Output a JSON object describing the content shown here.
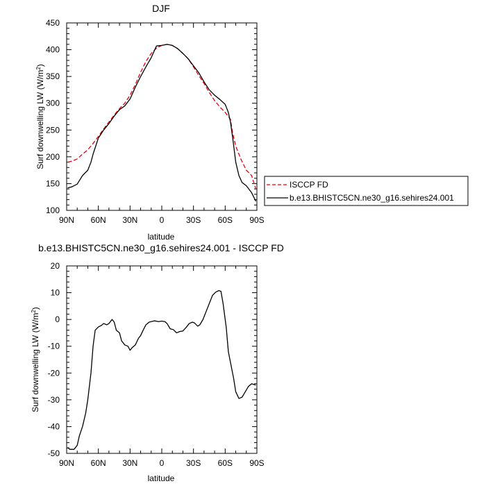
{
  "chart_data": [
    {
      "type": "line",
      "title": "DJF",
      "xlabel": "latitude",
      "ylabel": "Surf downwelling LW (W/m²)",
      "ylabel_main": "Surf downwelling LW (W/m",
      "ylabel_sup": "2",
      "ylabel_tail": ")",
      "xlim": [
        -90,
        90
      ],
      "ylim": [
        100,
        450
      ],
      "x_ticks": [
        {
          "value": -90,
          "label": "90N"
        },
        {
          "value": -60,
          "label": "60N"
        },
        {
          "value": -30,
          "label": "30N"
        },
        {
          "value": 0,
          "label": "0"
        },
        {
          "value": 30,
          "label": "30S"
        },
        {
          "value": 60,
          "label": "60S"
        },
        {
          "value": 90,
          "label": "90S"
        }
      ],
      "y_ticks": [
        {
          "value": 100,
          "label": "100"
        },
        {
          "value": 150,
          "label": "150"
        },
        {
          "value": 200,
          "label": "200"
        },
        {
          "value": 250,
          "label": "250"
        },
        {
          "value": 300,
          "label": "300"
        },
        {
          "value": 350,
          "label": "350"
        },
        {
          "value": 400,
          "label": "400"
        },
        {
          "value": 450,
          "label": "450"
        }
      ],
      "legend_position": "outside-right",
      "series": [
        {
          "name": "ISCCP FD",
          "color": "#e8000b",
          "dash": "dashed",
          "points": [
            [
              -89,
              190
            ],
            [
              -85,
              192
            ],
            [
              -80,
              196
            ],
            [
              -75,
              205
            ],
            [
              -70,
              213
            ],
            [
              -65,
              225
            ],
            [
              -60,
              238
            ],
            [
              -55,
              252
            ],
            [
              -50,
              265
            ],
            [
              -45,
              278
            ],
            [
              -40,
              290
            ],
            [
              -35,
              300
            ],
            [
              -30,
              315
            ],
            [
              -25,
              335
            ],
            [
              -20,
              358
            ],
            [
              -15,
              378
            ],
            [
              -10,
              393
            ],
            [
              -5,
              403
            ],
            [
              0,
              408
            ],
            [
              5,
              410
            ],
            [
              10,
              408
            ],
            [
              15,
              402
            ],
            [
              20,
              393
            ],
            [
              25,
              383
            ],
            [
              30,
              368
            ],
            [
              35,
              352
            ],
            [
              40,
              337
            ],
            [
              45,
              320
            ],
            [
              50,
              305
            ],
            [
              55,
              293
            ],
            [
              60,
              283
            ],
            [
              65,
              270
            ],
            [
              67,
              245
            ],
            [
              70,
              220
            ],
            [
              75,
              195
            ],
            [
              80,
              175
            ],
            [
              85,
              165
            ],
            [
              89,
              140
            ]
          ]
        },
        {
          "name": "b.e13.BHISTC5CN.ne30_g16.sehires24.001",
          "color": "#000000",
          "dash": "solid",
          "points": [
            [
              -89,
              142
            ],
            [
              -85,
              144
            ],
            [
              -80,
              149
            ],
            [
              -75,
              165
            ],
            [
              -70,
              175
            ],
            [
              -67,
              190
            ],
            [
              -65,
              205
            ],
            [
              -60,
              235
            ],
            [
              -55,
              250
            ],
            [
              -50,
              262
            ],
            [
              -45,
              276
            ],
            [
              -40,
              288
            ],
            [
              -35,
              295
            ],
            [
              -30,
              308
            ],
            [
              -25,
              330
            ],
            [
              -20,
              350
            ],
            [
              -15,
              368
            ],
            [
              -10,
              385
            ],
            [
              -5,
              407
            ],
            [
              0,
              408
            ],
            [
              5,
              410
            ],
            [
              10,
              408
            ],
            [
              15,
              402
            ],
            [
              20,
              393
            ],
            [
              25,
              383
            ],
            [
              30,
              370
            ],
            [
              35,
              357
            ],
            [
              40,
              340
            ],
            [
              45,
              325
            ],
            [
              50,
              315
            ],
            [
              55,
              307
            ],
            [
              60,
              298
            ],
            [
              63,
              283
            ],
            [
              65,
              265
            ],
            [
              67,
              237
            ],
            [
              70,
              190
            ],
            [
              73,
              165
            ],
            [
              76,
              152
            ],
            [
              80,
              146
            ],
            [
              85,
              133
            ],
            [
              89,
              117
            ]
          ]
        }
      ]
    },
    {
      "type": "line",
      "title": "b.e13.BHISTC5CN.ne30_g16.sehires24.001 - ISCCP FD",
      "xlabel": "latitude",
      "ylabel": "Surf downwelling LW (W/m²)",
      "ylabel_main": "Surf downwelling LW (W/m",
      "ylabel_sup": "2",
      "ylabel_tail": ")",
      "xlim": [
        -90,
        90
      ],
      "ylim": [
        -50,
        20
      ],
      "x_ticks": [
        {
          "value": -90,
          "label": "90N"
        },
        {
          "value": -60,
          "label": "60N"
        },
        {
          "value": -30,
          "label": "30N"
        },
        {
          "value": 0,
          "label": "0"
        },
        {
          "value": 30,
          "label": "30S"
        },
        {
          "value": 60,
          "label": "60S"
        },
        {
          "value": 90,
          "label": "90S"
        }
      ],
      "y_ticks": [
        {
          "value": -50,
          "label": "-50"
        },
        {
          "value": -40,
          "label": "-40"
        },
        {
          "value": -30,
          "label": "-30"
        },
        {
          "value": -20,
          "label": "-20"
        },
        {
          "value": -10,
          "label": "-10"
        },
        {
          "value": 0,
          "label": "0"
        },
        {
          "value": 10,
          "label": "10"
        },
        {
          "value": 20,
          "label": "20"
        }
      ],
      "series": [
        {
          "color": "#000000",
          "dash": "solid",
          "points": [
            [
              -89,
              -47.8
            ],
            [
              -87,
              -48.5
            ],
            [
              -83,
              -48.5
            ],
            [
              -80,
              -47
            ],
            [
              -78,
              -43.5
            ],
            [
              -75,
              -40
            ],
            [
              -72,
              -35
            ],
            [
              -70,
              -30
            ],
            [
              -67,
              -20
            ],
            [
              -65,
              -10
            ],
            [
              -63,
              -4
            ],
            [
              -60,
              -2.8
            ],
            [
              -57,
              -2.2
            ],
            [
              -55,
              -1.5
            ],
            [
              -52,
              -2
            ],
            [
              -50,
              -1.5
            ],
            [
              -47,
              0
            ],
            [
              -45,
              -1
            ],
            [
              -43,
              -4
            ],
            [
              -40,
              -5
            ],
            [
              -38,
              -8
            ],
            [
              -35,
              -9.5
            ],
            [
              -32,
              -10
            ],
            [
              -30,
              -11.5
            ],
            [
              -28,
              -10.5
            ],
            [
              -25,
              -9.5
            ],
            [
              -22,
              -7
            ],
            [
              -20,
              -6
            ],
            [
              -17,
              -3.5
            ],
            [
              -15,
              -2
            ],
            [
              -12,
              -1
            ],
            [
              -10,
              -0.8
            ],
            [
              -7,
              -0.5
            ],
            [
              -3,
              -0.8
            ],
            [
              0,
              -0.6
            ],
            [
              3,
              -0.8
            ],
            [
              5,
              -1.5
            ],
            [
              8,
              -3.5
            ],
            [
              11,
              -3.8
            ],
            [
              14,
              -5
            ],
            [
              17,
              -4.5
            ],
            [
              20,
              -4.3
            ],
            [
              23,
              -3
            ],
            [
              26,
              -1.5
            ],
            [
              29,
              -1
            ],
            [
              31,
              -1.3
            ],
            [
              34,
              -2.5
            ],
            [
              36,
              -2
            ],
            [
              39,
              0
            ],
            [
              42,
              3
            ],
            [
              45,
              6
            ],
            [
              48,
              9
            ],
            [
              51,
              10.2
            ],
            [
              54,
              10.8
            ],
            [
              56,
              10.5
            ],
            [
              58,
              6
            ],
            [
              61,
              -3
            ],
            [
              63,
              -12
            ],
            [
              66,
              -18
            ],
            [
              68,
              -22
            ],
            [
              70,
              -27
            ],
            [
              73,
              -29.5
            ],
            [
              76,
              -29
            ],
            [
              79,
              -27
            ],
            [
              82,
              -25
            ],
            [
              85,
              -24
            ],
            [
              89,
              -24.5
            ]
          ]
        }
      ]
    }
  ]
}
